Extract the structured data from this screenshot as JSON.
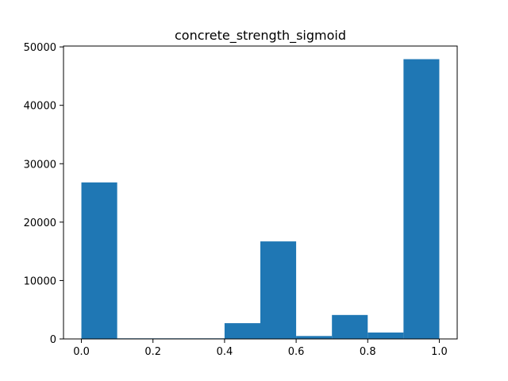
{
  "chart_data": {
    "type": "bar",
    "title": "concrete_strength_sigmoid",
    "xlabel": "",
    "ylabel": "",
    "bins": [
      {
        "x0": 0.0,
        "x1": 0.1,
        "value": 26800
      },
      {
        "x0": 0.1,
        "x1": 0.2,
        "value": 100
      },
      {
        "x0": 0.2,
        "x1": 0.3,
        "value": 100
      },
      {
        "x0": 0.3,
        "x1": 0.4,
        "value": 100
      },
      {
        "x0": 0.4,
        "x1": 0.5,
        "value": 2700
      },
      {
        "x0": 0.5,
        "x1": 0.6,
        "value": 16700
      },
      {
        "x0": 0.6,
        "x1": 0.7,
        "value": 500
      },
      {
        "x0": 0.7,
        "x1": 0.8,
        "value": 4100
      },
      {
        "x0": 0.8,
        "x1": 0.9,
        "value": 1100
      },
      {
        "x0": 0.9,
        "x1": 1.0,
        "value": 47900
      }
    ],
    "xlim": [
      -0.05,
      1.05
    ],
    "ylim": [
      0,
      50150
    ],
    "xticks": [
      0.0,
      0.2,
      0.4,
      0.6,
      0.8,
      1.0
    ],
    "xtick_labels": [
      "0.0",
      "0.2",
      "0.4",
      "0.6",
      "0.8",
      "1.0"
    ],
    "yticks": [
      0,
      10000,
      20000,
      30000,
      40000,
      50000
    ],
    "ytick_labels": [
      "0",
      "10000",
      "20000",
      "30000",
      "40000",
      "50000"
    ],
    "bar_color": "#1f77b4",
    "grid": false,
    "legend": "none"
  }
}
